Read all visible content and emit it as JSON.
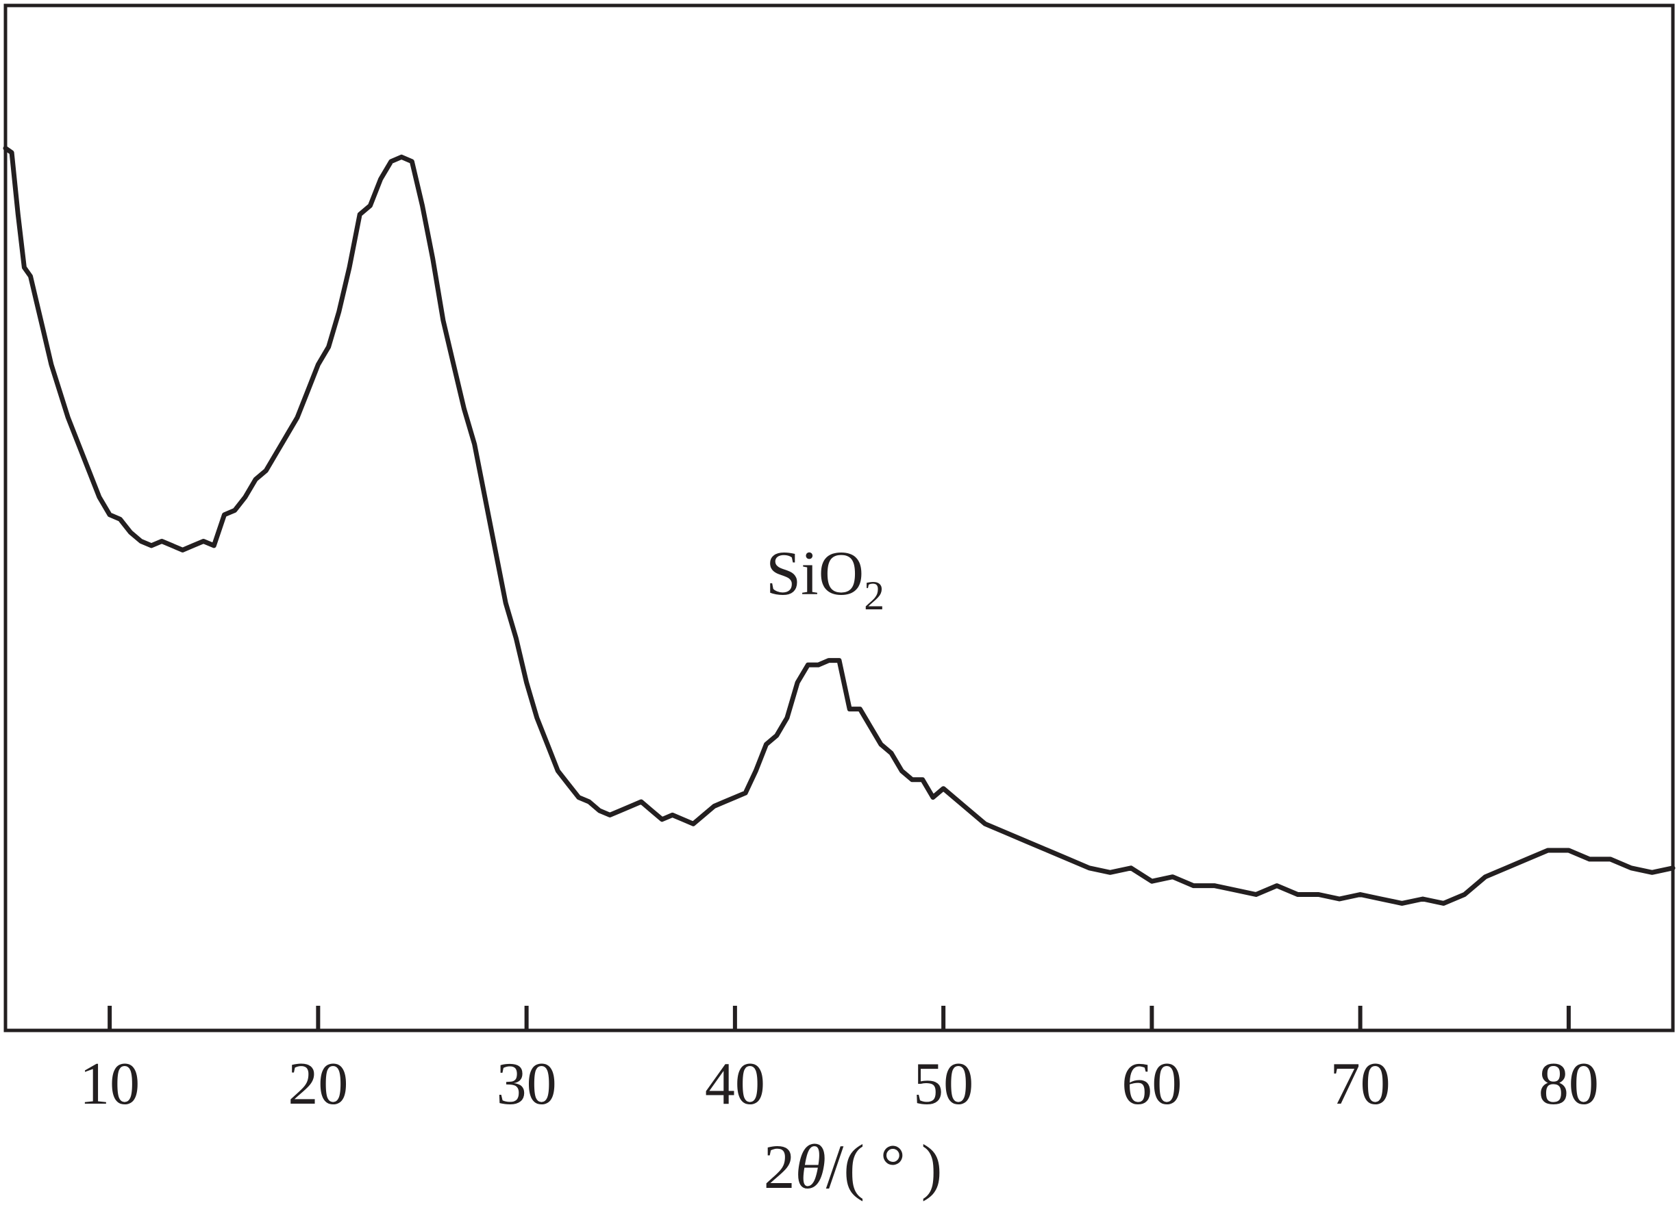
{
  "chart_data": {
    "type": "line",
    "title": "",
    "xlabel": {
      "prefix": "2",
      "symbol": "θ",
      "suffix": "/( ° )"
    },
    "ylabel": "",
    "xlim": [
      5,
      85
    ],
    "ylim": [
      0,
      1
    ],
    "xticks": [
      {
        "value": 10,
        "label": "10"
      },
      {
        "value": 20,
        "label": "20"
      },
      {
        "value": 30,
        "label": "30"
      },
      {
        "value": 40,
        "label": "40"
      },
      {
        "value": 50,
        "label": "50"
      },
      {
        "value": 60,
        "label": "60"
      },
      {
        "value": 70,
        "label": "70"
      },
      {
        "value": 80,
        "label": "80"
      }
    ],
    "grid": false,
    "legend": "none",
    "line_color": "#231f20",
    "annotations": [
      {
        "x": 44,
        "y": 0.49,
        "base": "SiO",
        "subscript": "2"
      }
    ],
    "series": [
      {
        "x": [
          5,
          5.3,
          5.6,
          5.9,
          6.2,
          6.5,
          6.8,
          7.2,
          7.6,
          8,
          8.5,
          9,
          9.5,
          10,
          10.5,
          11,
          11.5,
          12,
          12.5,
          13,
          13.5,
          14,
          14.5,
          15,
          15.5,
          16,
          16.5,
          17,
          17.5,
          18,
          18.5,
          19,
          19.5,
          20,
          20.5,
          21,
          21.5,
          22,
          22.5,
          23,
          23.5,
          24,
          24.5,
          25,
          25.5,
          26,
          26.5,
          27,
          27.5,
          28,
          28.5,
          29,
          29.5,
          30,
          30.5,
          31,
          31.5,
          32,
          32.5,
          33,
          33.5,
          34,
          34.5,
          35,
          35.5,
          36,
          36.5,
          37,
          37.5,
          38,
          38.5,
          39,
          39.5,
          40,
          40.5,
          41,
          41.5,
          42,
          42.5,
          43,
          43.5,
          44,
          44.5,
          45,
          45.5,
          46,
          46.5,
          47,
          47.5,
          48,
          48.5,
          49,
          49.5,
          50,
          51,
          52,
          53,
          54,
          55,
          56,
          57,
          58,
          59,
          60,
          61,
          62,
          63,
          64,
          65,
          66,
          67,
          68,
          69,
          70,
          71,
          72,
          73,
          74,
          75,
          76,
          77,
          78,
          79,
          80,
          81,
          82,
          83,
          84,
          85
        ],
        "y": [
          0.995,
          0.99,
          0.92,
          0.86,
          0.85,
          0.82,
          0.79,
          0.75,
          0.72,
          0.69,
          0.66,
          0.63,
          0.6,
          0.58,
          0.575,
          0.56,
          0.55,
          0.545,
          0.55,
          0.545,
          0.54,
          0.545,
          0.55,
          0.545,
          0.58,
          0.585,
          0.6,
          0.62,
          0.63,
          0.65,
          0.67,
          0.69,
          0.72,
          0.75,
          0.77,
          0.81,
          0.86,
          0.92,
          0.93,
          0.96,
          0.98,
          0.985,
          0.98,
          0.93,
          0.87,
          0.8,
          0.75,
          0.7,
          0.66,
          0.6,
          0.54,
          0.48,
          0.44,
          0.39,
          0.35,
          0.32,
          0.29,
          0.275,
          0.26,
          0.255,
          0.245,
          0.24,
          0.245,
          0.25,
          0.255,
          0.245,
          0.235,
          0.24,
          0.235,
          0.23,
          0.24,
          0.25,
          0.255,
          0.26,
          0.265,
          0.29,
          0.32,
          0.33,
          0.35,
          0.39,
          0.41,
          0.41,
          0.415,
          0.415,
          0.36,
          0.36,
          0.34,
          0.32,
          0.31,
          0.29,
          0.28,
          0.28,
          0.26,
          0.27,
          0.25,
          0.23,
          0.22,
          0.21,
          0.2,
          0.19,
          0.18,
          0.175,
          0.18,
          0.165,
          0.17,
          0.16,
          0.16,
          0.155,
          0.15,
          0.16,
          0.15,
          0.15,
          0.145,
          0.15,
          0.145,
          0.14,
          0.145,
          0.14,
          0.15,
          0.17,
          0.18,
          0.19,
          0.2,
          0.2,
          0.19,
          0.19,
          0.18,
          0.175,
          0.18
        ]
      }
    ]
  }
}
